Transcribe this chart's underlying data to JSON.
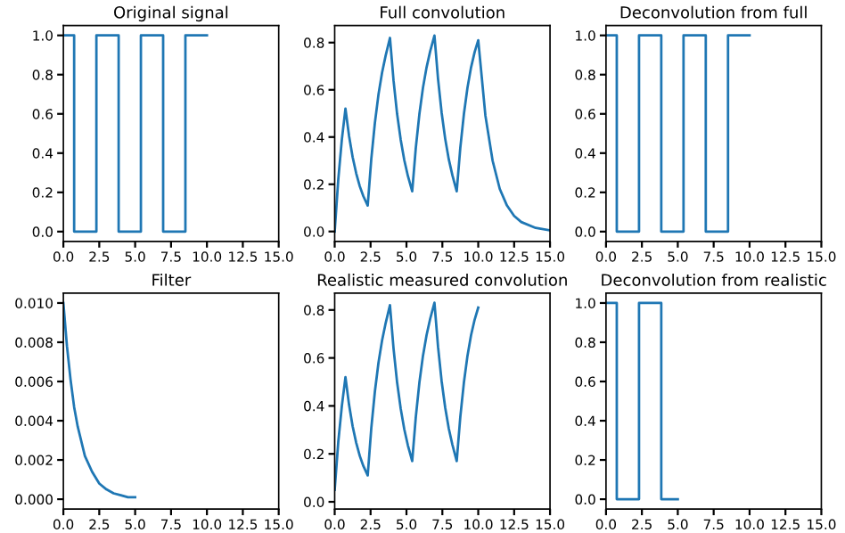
{
  "chart_data": [
    {
      "type": "line",
      "title": "Original signal",
      "series": [
        {
          "color": "#1f77b4",
          "x": [
            0,
            0.75,
            0.75,
            2.3,
            2.3,
            3.85,
            3.85,
            5.4,
            5.4,
            6.95,
            6.95,
            8.5,
            8.5,
            10
          ],
          "values": [
            1,
            1,
            0,
            0,
            1,
            1,
            0,
            0,
            1,
            1,
            0,
            0,
            1,
            1
          ]
        }
      ],
      "xlim": [
        0,
        15
      ],
      "xticks": [
        {
          "value": 0,
          "label": "0.0"
        },
        {
          "value": 2.5,
          "label": "2.5"
        },
        {
          "value": 5,
          "label": "5.0"
        },
        {
          "value": 7.5,
          "label": "7.5"
        },
        {
          "value": 10,
          "label": "10.0"
        },
        {
          "value": 12.5,
          "label": "12.5"
        },
        {
          "value": 15,
          "label": "15.0"
        }
      ],
      "ylim": [
        -0.05,
        1.05
      ],
      "yticks": [
        {
          "value": 0,
          "label": "0.0"
        },
        {
          "value": 0.2,
          "label": "0.2"
        },
        {
          "value": 0.4,
          "label": "0.4"
        },
        {
          "value": 0.6,
          "label": "0.6"
        },
        {
          "value": 0.8,
          "label": "0.8"
        },
        {
          "value": 1,
          "label": "1.0"
        }
      ],
      "grid": false,
      "legend": false
    },
    {
      "type": "line",
      "title": "Full convolution",
      "series": [
        {
          "color": "#1f77b4",
          "x": [
            0,
            0.25,
            0.5,
            0.75,
            1.0,
            1.25,
            1.5,
            1.75,
            2.0,
            2.3,
            2.55,
            2.8,
            3.05,
            3.3,
            3.55,
            3.85,
            4.1,
            4.35,
            4.6,
            4.85,
            5.1,
            5.4,
            5.65,
            5.9,
            6.15,
            6.4,
            6.65,
            6.95,
            7.2,
            7.45,
            7.7,
            7.95,
            8.2,
            8.5,
            8.75,
            9.0,
            9.25,
            9.5,
            9.75,
            10,
            10.5,
            11,
            11.5,
            12,
            12.5,
            13,
            14,
            15
          ],
          "values": [
            0,
            0.22,
            0.39,
            0.52,
            0.405,
            0.315,
            0.246,
            0.191,
            0.149,
            0.11,
            0.307,
            0.46,
            0.58,
            0.673,
            0.745,
            0.82,
            0.639,
            0.497,
            0.388,
            0.302,
            0.235,
            0.17,
            0.354,
            0.497,
            0.609,
            0.695,
            0.763,
            0.83,
            0.646,
            0.503,
            0.392,
            0.305,
            0.238,
            0.17,
            0.354,
            0.497,
            0.609,
            0.695,
            0.76,
            0.81,
            0.49,
            0.3,
            0.18,
            0.11,
            0.066,
            0.04,
            0.015,
            0.005
          ]
        }
      ],
      "xlim": [
        0,
        15
      ],
      "xticks": [
        {
          "value": 0,
          "label": "0.0"
        },
        {
          "value": 2.5,
          "label": "2.5"
        },
        {
          "value": 5,
          "label": "5.0"
        },
        {
          "value": 7.5,
          "label": "7.5"
        },
        {
          "value": 10,
          "label": "10.0"
        },
        {
          "value": 12.5,
          "label": "12.5"
        },
        {
          "value": 15,
          "label": "15.0"
        }
      ],
      "ylim": [
        -0.042,
        0.872
      ],
      "yticks": [
        {
          "value": 0,
          "label": "0.0"
        },
        {
          "value": 0.2,
          "label": "0.2"
        },
        {
          "value": 0.4,
          "label": "0.4"
        },
        {
          "value": 0.6,
          "label": "0.6"
        },
        {
          "value": 0.8,
          "label": "0.8"
        }
      ],
      "grid": false,
      "legend": false
    },
    {
      "type": "line",
      "title": "Deconvolution from full",
      "series": [
        {
          "color": "#1f77b4",
          "x": [
            0,
            0.75,
            0.75,
            2.3,
            2.3,
            3.85,
            3.85,
            5.4,
            5.4,
            6.95,
            6.95,
            8.5,
            8.5,
            10
          ],
          "values": [
            1,
            1,
            0,
            0,
            1,
            1,
            0,
            0,
            1,
            1,
            0,
            0,
            1,
            1
          ]
        }
      ],
      "xlim": [
        0,
        15
      ],
      "xticks": [
        {
          "value": 0,
          "label": "0.0"
        },
        {
          "value": 2.5,
          "label": "2.5"
        },
        {
          "value": 5,
          "label": "5.0"
        },
        {
          "value": 7.5,
          "label": "7.5"
        },
        {
          "value": 10,
          "label": "10.0"
        },
        {
          "value": 12.5,
          "label": "12.5"
        },
        {
          "value": 15,
          "label": "15.0"
        }
      ],
      "ylim": [
        -0.05,
        1.05
      ],
      "yticks": [
        {
          "value": 0,
          "label": "0.0"
        },
        {
          "value": 0.2,
          "label": "0.2"
        },
        {
          "value": 0.4,
          "label": "0.4"
        },
        {
          "value": 0.6,
          "label": "0.6"
        },
        {
          "value": 0.8,
          "label": "0.8"
        },
        {
          "value": 1,
          "label": "1.0"
        }
      ],
      "grid": false,
      "legend": false
    },
    {
      "type": "line",
      "title": "Filter",
      "series": [
        {
          "color": "#1f77b4",
          "x": [
            0,
            0.25,
            0.5,
            0.75,
            1,
            1.5,
            2,
            2.5,
            3,
            3.5,
            4,
            4.5,
            5
          ],
          "values": [
            0.01,
            0.0078,
            0.0061,
            0.0047,
            0.0037,
            0.0022,
            0.0014,
            0.0008,
            0.0005,
            0.0003,
            0.0002,
            0.0001,
            0.0001
          ]
        }
      ],
      "xlim": [
        0,
        15
      ],
      "xticks": [
        {
          "value": 0,
          "label": "0.0"
        },
        {
          "value": 2.5,
          "label": "2.5"
        },
        {
          "value": 5,
          "label": "5.0"
        },
        {
          "value": 7.5,
          "label": "7.5"
        },
        {
          "value": 10,
          "label": "10.0"
        },
        {
          "value": 12.5,
          "label": "12.5"
        },
        {
          "value": 15,
          "label": "15.0"
        }
      ],
      "ylim": [
        -0.0005,
        0.0105
      ],
      "yticks": [
        {
          "value": 0,
          "label": "0.000"
        },
        {
          "value": 0.002,
          "label": "0.002"
        },
        {
          "value": 0.004,
          "label": "0.004"
        },
        {
          "value": 0.006,
          "label": "0.006"
        },
        {
          "value": 0.008,
          "label": "0.008"
        },
        {
          "value": 0.01,
          "label": "0.010"
        }
      ],
      "grid": false,
      "legend": false
    },
    {
      "type": "line",
      "title": "Realistic measured convolution",
      "series": [
        {
          "color": "#1f77b4",
          "x": [
            0,
            0.25,
            0.5,
            0.75,
            1.0,
            1.25,
            1.5,
            1.75,
            2.0,
            2.3,
            2.55,
            2.8,
            3.05,
            3.3,
            3.55,
            3.85,
            4.1,
            4.35,
            4.6,
            4.85,
            5.1,
            5.4,
            5.65,
            5.9,
            6.15,
            6.4,
            6.65,
            6.95,
            7.2,
            7.45,
            7.7,
            7.95,
            8.2,
            8.5,
            8.75,
            9.0,
            9.25,
            9.5,
            9.75,
            10
          ],
          "values": [
            0.05,
            0.25,
            0.4,
            0.52,
            0.405,
            0.315,
            0.246,
            0.191,
            0.149,
            0.11,
            0.307,
            0.46,
            0.58,
            0.673,
            0.745,
            0.82,
            0.639,
            0.497,
            0.388,
            0.302,
            0.235,
            0.17,
            0.354,
            0.497,
            0.609,
            0.695,
            0.763,
            0.83,
            0.646,
            0.503,
            0.392,
            0.305,
            0.238,
            0.17,
            0.354,
            0.497,
            0.609,
            0.695,
            0.76,
            0.81
          ]
        }
      ],
      "xlim": [
        0,
        15
      ],
      "xticks": [
        {
          "value": 0,
          "label": "0.0"
        },
        {
          "value": 2.5,
          "label": "2.5"
        },
        {
          "value": 5,
          "label": "5.0"
        },
        {
          "value": 7.5,
          "label": "7.5"
        },
        {
          "value": 10,
          "label": "10.0"
        },
        {
          "value": 12.5,
          "label": "12.5"
        },
        {
          "value": 15,
          "label": "15.0"
        }
      ],
      "ylim": [
        -0.03,
        0.87
      ],
      "yticks": [
        {
          "value": 0,
          "label": "0.0"
        },
        {
          "value": 0.2,
          "label": "0.2"
        },
        {
          "value": 0.4,
          "label": "0.4"
        },
        {
          "value": 0.6,
          "label": "0.6"
        },
        {
          "value": 0.8,
          "label": "0.8"
        }
      ],
      "grid": false,
      "legend": false
    },
    {
      "type": "line",
      "title": "Deconvolution from realistic",
      "series": [
        {
          "color": "#1f77b4",
          "x": [
            0,
            0.75,
            0.75,
            2.3,
            2.3,
            3.85,
            3.85,
            5
          ],
          "values": [
            1,
            1,
            0,
            0,
            1,
            1,
            0,
            0
          ]
        }
      ],
      "xlim": [
        0,
        15
      ],
      "xticks": [
        {
          "value": 0,
          "label": "0.0"
        },
        {
          "value": 2.5,
          "label": "2.5"
        },
        {
          "value": 5,
          "label": "5.0"
        },
        {
          "value": 7.5,
          "label": "7.5"
        },
        {
          "value": 10,
          "label": "10.0"
        },
        {
          "value": 12.5,
          "label": "12.5"
        },
        {
          "value": 15,
          "label": "15.0"
        }
      ],
      "ylim": [
        -0.05,
        1.05
      ],
      "yticks": [
        {
          "value": 0,
          "label": "0.0"
        },
        {
          "value": 0.2,
          "label": "0.2"
        },
        {
          "value": 0.4,
          "label": "0.4"
        },
        {
          "value": 0.6,
          "label": "0.6"
        },
        {
          "value": 0.8,
          "label": "0.8"
        },
        {
          "value": 1,
          "label": "1.0"
        }
      ],
      "grid": false,
      "legend": false
    }
  ]
}
